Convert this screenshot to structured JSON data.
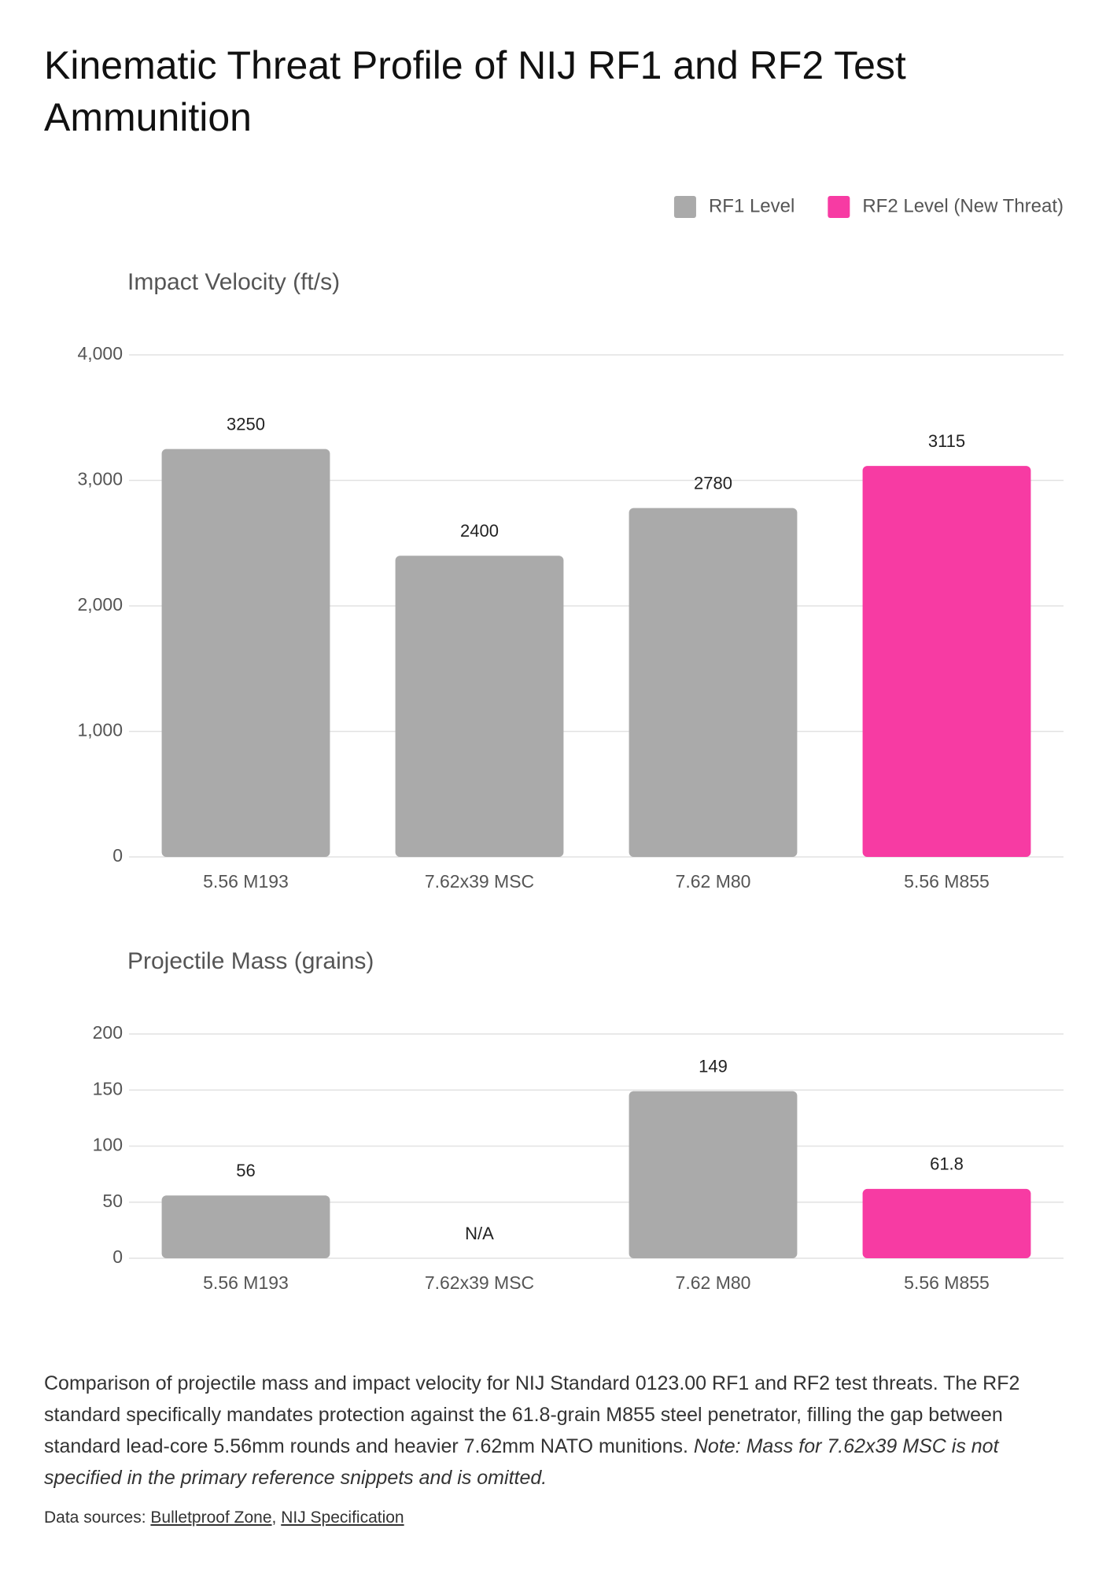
{
  "chart_data": [
    {
      "type": "bar",
      "title": "Kinematic Threat Profile of NIJ RF1 and RF2 Test Ammunition",
      "subtitle": "Impact Velocity (ft/s)",
      "categories": [
        "5.56 M193",
        "7.62x39 MSC",
        "7.62 M80",
        "5.56 M855"
      ],
      "series": [
        {
          "name": "RF1 Level",
          "color": "#aaaaaa",
          "values": [
            3250,
            2400,
            2780,
            null
          ]
        },
        {
          "name": "RF2 Level (New Threat)",
          "color": "#f73ba3",
          "values": [
            null,
            null,
            null,
            3115
          ]
        }
      ],
      "ylim": [
        0,
        4000
      ],
      "yticks": [
        0,
        {
          "value": 1000,
          "label": "1,000"
        },
        {
          "value": 2000,
          "label": "2,000"
        },
        {
          "value": 3000,
          "label": "3,000"
        },
        {
          "value": 4000,
          "label": "4,000"
        }
      ],
      "grid": true,
      "legend": "top-right"
    },
    {
      "type": "bar",
      "subtitle": "Projectile Mass (grains)",
      "categories": [
        "5.56 M193",
        "7.62x39 MSC",
        "7.62 M80",
        "5.56 M855"
      ],
      "series": [
        {
          "name": "RF1 Level",
          "color": "#aaaaaa",
          "values": [
            56,
            null,
            149,
            null
          ],
          "value_labels": [
            null,
            "N/A",
            null,
            null
          ]
        },
        {
          "name": "RF2 Level (New Threat)",
          "color": "#f73ba3",
          "values": [
            null,
            null,
            null,
            61.8
          ]
        }
      ],
      "ylim": [
        0,
        200
      ],
      "yticks": [
        0,
        50,
        100,
        150,
        200
      ],
      "grid": true
    }
  ],
  "caption": {
    "text": "Comparison of projectile mass and impact velocity for NIJ Standard 0123.00 RF1 and RF2 test threats. The RF2 standard specifically mandates protection against the 61.8-grain M855 steel penetrator, filling the gap between standard lead-core 5.56mm rounds and heavier 7.62mm NATO munitions.",
    "note": "Note: Mass for 7.62x39 MSC is not specified in the primary reference snippets and is omitted."
  },
  "sources": {
    "label": "Data sources:",
    "links": [
      "Bulletproof Zone",
      "NIJ Specification"
    ],
    "separator": ","
  }
}
